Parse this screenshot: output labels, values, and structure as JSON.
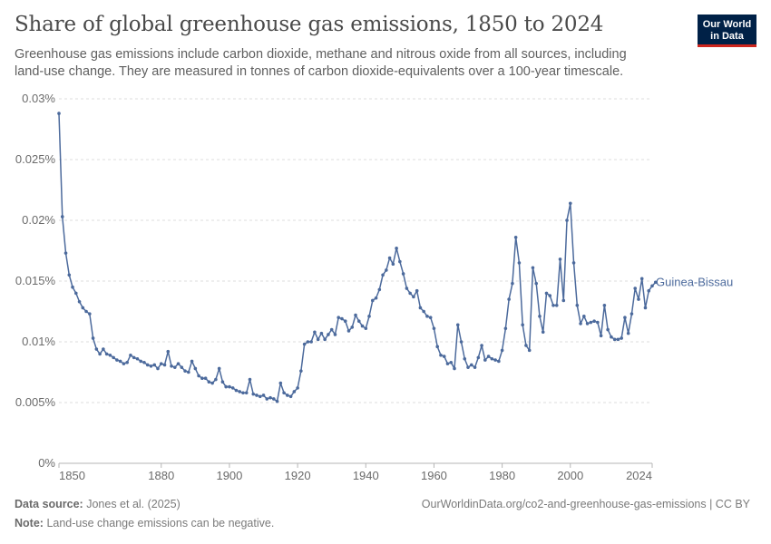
{
  "header": {
    "title": "Share of global greenhouse gas emissions, 1850 to 2024",
    "subtitle": "Greenhouse gas emissions include carbon dioxide, methane and nitrous oxide from all sources, including land-use change. They are measured in tonnes of carbon dioxide-equivalents over a 100-year timescale."
  },
  "logo": {
    "line1": "Our World",
    "line2": "in Data",
    "bg_color": "#002147",
    "accent_color": "#ce261e"
  },
  "footer": {
    "source_label": "Data source:",
    "source_text": "Jones et al. (2025)",
    "url_text": "OurWorldinData.org/co2-and-greenhouse-gas-emissions | CC BY",
    "note_label": "Note:",
    "note_text": "Land-use change emissions can be negative."
  },
  "chart_data": {
    "type": "line",
    "title": "Share of global greenhouse gas emissions, 1850 to 2024",
    "xlabel": "",
    "ylabel": "",
    "xlim": [
      1850,
      2024
    ],
    "ylim": [
      0,
      0.03
    ],
    "x_ticks": [
      1850,
      1880,
      1900,
      1920,
      1940,
      1960,
      1980,
      2000,
      2024
    ],
    "y_ticks": [
      0,
      0.005,
      0.01,
      0.015,
      0.02,
      0.025,
      0.03
    ],
    "y_tick_labels": [
      "0%",
      "0.005%",
      "0.01%",
      "0.015%",
      "0.02%",
      "0.025%",
      "0.03%"
    ],
    "grid": "horizontal dashed",
    "line_color": "#4c6a9c",
    "series": [
      {
        "name": "Guinea-Bissau",
        "x_start": 1850,
        "x_step": 1,
        "values": [
          0.0288,
          0.0203,
          0.0173,
          0.0155,
          0.0145,
          0.014,
          0.0133,
          0.0128,
          0.0125,
          0.0123,
          0.0103,
          0.0094,
          0.009,
          0.0094,
          0.009,
          0.0089,
          0.0087,
          0.0085,
          0.0084,
          0.0082,
          0.0083,
          0.0089,
          0.0087,
          0.0086,
          0.0084,
          0.0083,
          0.0081,
          0.008,
          0.0081,
          0.0078,
          0.0082,
          0.0081,
          0.0092,
          0.008,
          0.0079,
          0.0082,
          0.0079,
          0.0076,
          0.0075,
          0.0084,
          0.0078,
          0.0072,
          0.007,
          0.007,
          0.0067,
          0.0066,
          0.0069,
          0.0078,
          0.0067,
          0.0063,
          0.0063,
          0.0062,
          0.006,
          0.0059,
          0.0058,
          0.0058,
          0.0069,
          0.0057,
          0.0056,
          0.0055,
          0.0056,
          0.0053,
          0.0054,
          0.0053,
          0.0051,
          0.0066,
          0.0058,
          0.0056,
          0.0055,
          0.0059,
          0.0062,
          0.0076,
          0.0098,
          0.01,
          0.01,
          0.0108,
          0.0102,
          0.0107,
          0.0102,
          0.0106,
          0.011,
          0.0106,
          0.012,
          0.0119,
          0.0117,
          0.0109,
          0.0112,
          0.0122,
          0.0117,
          0.0113,
          0.0111,
          0.0121,
          0.0134,
          0.0136,
          0.0143,
          0.0155,
          0.0159,
          0.0169,
          0.0164,
          0.0177,
          0.0166,
          0.0156,
          0.0144,
          0.014,
          0.0137,
          0.0142,
          0.0128,
          0.0125,
          0.0121,
          0.012,
          0.0111,
          0.0096,
          0.0089,
          0.0088,
          0.0082,
          0.0083,
          0.0078,
          0.0114,
          0.01,
          0.0086,
          0.0079,
          0.0081,
          0.0079,
          0.0087,
          0.0097,
          0.0085,
          0.0088,
          0.0086,
          0.0085,
          0.0084,
          0.0093,
          0.0111,
          0.0135,
          0.0148,
          0.0186,
          0.0165,
          0.0114,
          0.0097,
          0.0093,
          0.0161,
          0.0148,
          0.0121,
          0.0108,
          0.014,
          0.0138,
          0.013,
          0.013,
          0.0168,
          0.0134,
          0.02,
          0.0214,
          0.0165,
          0.013,
          0.0115,
          0.0121,
          0.0115,
          0.0116,
          0.0117,
          0.0116,
          0.0105,
          0.013,
          0.011,
          0.0104,
          0.0102,
          0.0102,
          0.0103,
          0.012,
          0.0107,
          0.0123,
          0.0144,
          0.0135,
          0.0152,
          0.0128,
          0.0142,
          0.0146,
          0.0149
        ]
      }
    ]
  }
}
